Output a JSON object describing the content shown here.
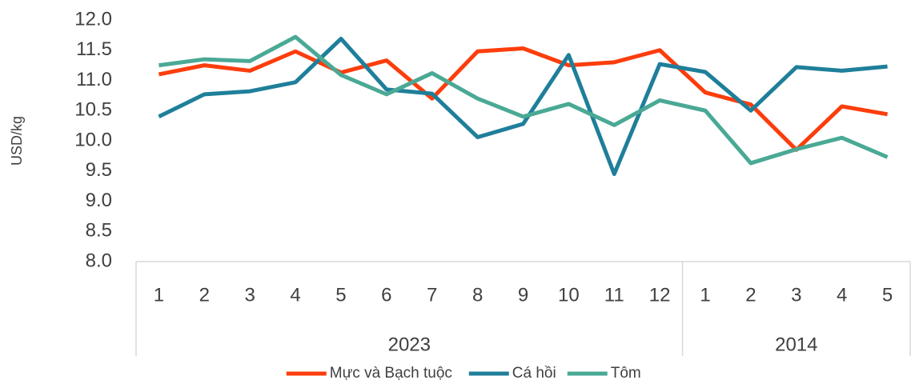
{
  "chart_data": {
    "type": "line",
    "y_axis_label": "USD/kg",
    "category_groups": [
      {
        "label": "2023",
        "categories": [
          "1",
          "2",
          "3",
          "4",
          "5",
          "6",
          "7",
          "8",
          "9",
          "10",
          "11",
          "12"
        ]
      },
      {
        "label": "2014",
        "categories": [
          "1",
          "2",
          "3",
          "4",
          "5"
        ]
      }
    ],
    "series": [
      {
        "name": "Mực và Bạch tuộc",
        "color": "#fc3d0c",
        "values": [
          11.1,
          11.25,
          11.16,
          11.48,
          11.13,
          11.33,
          10.7,
          11.48,
          11.53,
          11.25,
          11.3,
          11.5,
          10.8,
          10.6,
          9.85,
          10.57,
          10.44
        ]
      },
      {
        "name": "Cá hồi",
        "color": "#1f7f9a",
        "values": [
          10.4,
          10.77,
          10.82,
          10.97,
          11.69,
          10.85,
          10.78,
          10.06,
          10.28,
          11.42,
          9.45,
          11.27,
          11.14,
          10.5,
          11.22,
          11.16,
          11.23
        ]
      },
      {
        "name": "Tôm",
        "color": "#4aa995",
        "values": [
          11.25,
          11.35,
          11.32,
          11.72,
          11.09,
          10.77,
          11.12,
          10.7,
          10.4,
          10.61,
          10.26,
          10.67,
          10.5,
          9.63,
          9.86,
          10.05,
          9.73
        ]
      }
    ],
    "ylim": [
      8,
      12
    ],
    "yticks": [
      {
        "value": 8,
        "label": "8.0"
      },
      {
        "value": 8.5,
        "label": "8.5"
      },
      {
        "value": 9,
        "label": "9.0"
      },
      {
        "value": 9.5,
        "label": "9.5"
      },
      {
        "value": 10,
        "label": "10.0"
      },
      {
        "value": 10.5,
        "label": "10.5"
      },
      {
        "value": 11,
        "label": "11.0"
      },
      {
        "value": 11.5,
        "label": "11.5"
      },
      {
        "value": 12,
        "label": "12.0"
      }
    ],
    "grid": false,
    "legend": "bottom"
  }
}
